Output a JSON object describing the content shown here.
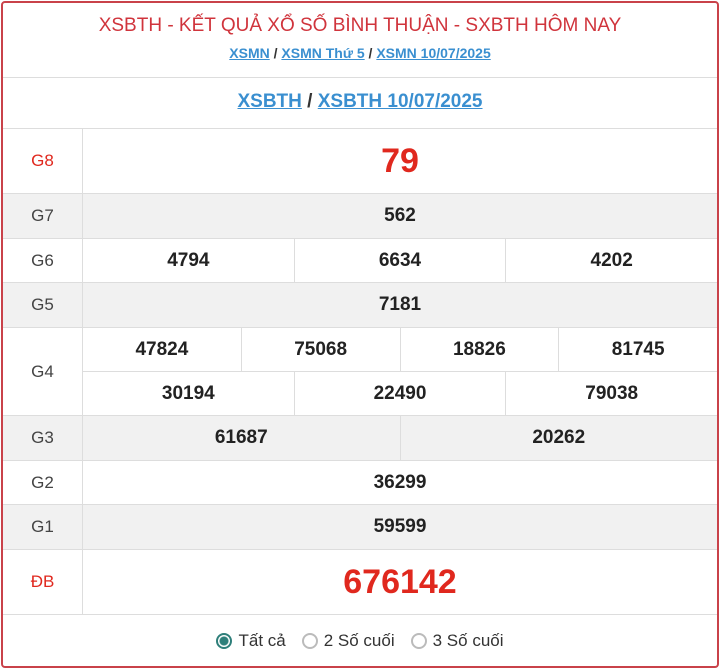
{
  "header": {
    "title": "XSBTH - KẾT QUẢ XỔ SỐ BÌNH THUẬN - SXBTH HÔM NAY",
    "breadcrumb": [
      "XSMN",
      "XSMN Thứ 5",
      "XSMN 10/07/2025"
    ],
    "sep": "/"
  },
  "subnav": [
    "XSBTH",
    "XSBTH 10/07/2025"
  ],
  "prizes": [
    {
      "label": "G8",
      "rows": [
        [
          "79"
        ]
      ],
      "big": true
    },
    {
      "label": "G7",
      "rows": [
        [
          "562"
        ]
      ]
    },
    {
      "label": "G6",
      "rows": [
        [
          "4794",
          "6634",
          "4202"
        ]
      ]
    },
    {
      "label": "G5",
      "rows": [
        [
          "7181"
        ]
      ]
    },
    {
      "label": "G4",
      "rows": [
        [
          "47824",
          "75068",
          "18826",
          "81745"
        ],
        [
          "30194",
          "22490",
          "79038"
        ]
      ]
    },
    {
      "label": "G3",
      "rows": [
        [
          "61687",
          "20262"
        ]
      ]
    },
    {
      "label": "G2",
      "rows": [
        [
          "36299"
        ]
      ]
    },
    {
      "label": "G1",
      "rows": [
        [
          "59599"
        ]
      ]
    },
    {
      "label": "ĐB",
      "rows": [
        [
          "676142"
        ]
      ],
      "big": true
    }
  ],
  "filter": {
    "options": [
      "Tất cả",
      "2 Số cuối",
      "3 Số cuối"
    ],
    "selected": 0
  }
}
